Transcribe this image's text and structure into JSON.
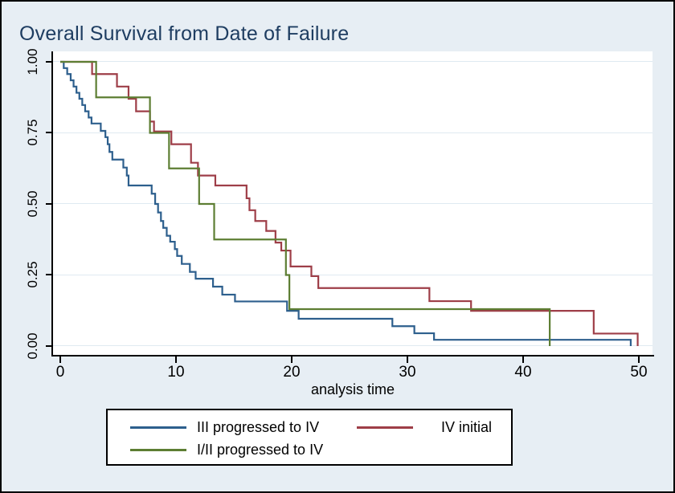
{
  "header": {
    "title": "Overall Survival from Date of Failure"
  },
  "chart_data": {
    "type": "line",
    "subtype": "kaplan-meier-step",
    "title": "Overall Survival from Date of Failure",
    "xlabel": "analysis time",
    "ylabel": "",
    "xlim": [
      0,
      50
    ],
    "ylim": [
      0.0,
      1.0
    ],
    "grid": true,
    "legend_position": "bottom",
    "x_tick_labels": [
      "0",
      "10",
      "20",
      "30",
      "40",
      "50"
    ],
    "x_tick_values": [
      0,
      10,
      20,
      30,
      40,
      50
    ],
    "y_tick_labels": [
      "1.00",
      "0.75",
      "0.50",
      "0.25",
      "0.00"
    ],
    "y_tick_values": [
      1.0,
      0.75,
      0.5,
      0.25,
      0.0
    ],
    "series": [
      {
        "key": "iii-progressed-to-iv",
        "name": "III progressed to IV",
        "color": "#2d5f8d",
        "start": [
          0,
          1.0
        ],
        "steps": [
          [
            0.3,
            0.978
          ],
          [
            0.6,
            0.957
          ],
          [
            0.9,
            0.935
          ],
          [
            1.15,
            0.913
          ],
          [
            1.4,
            0.891
          ],
          [
            1.65,
            0.87
          ],
          [
            1.9,
            0.848
          ],
          [
            2.15,
            0.826
          ],
          [
            2.45,
            0.804
          ],
          [
            2.7,
            0.783
          ],
          [
            3.5,
            0.757
          ],
          [
            3.9,
            0.735
          ],
          [
            4.1,
            0.71
          ],
          [
            4.25,
            0.683
          ],
          [
            4.5,
            0.656
          ],
          [
            5.45,
            0.628
          ],
          [
            5.75,
            0.6
          ],
          [
            5.9,
            0.565
          ],
          [
            7.9,
            0.536
          ],
          [
            8.2,
            0.5
          ],
          [
            8.45,
            0.47
          ],
          [
            8.7,
            0.44
          ],
          [
            8.9,
            0.416
          ],
          [
            9.2,
            0.388
          ],
          [
            9.5,
            0.367
          ],
          [
            9.9,
            0.341
          ],
          [
            10.1,
            0.317
          ],
          [
            10.5,
            0.289
          ],
          [
            11.2,
            0.261
          ],
          [
            11.7,
            0.237
          ],
          [
            13.2,
            0.209
          ],
          [
            14.0,
            0.181
          ],
          [
            15.1,
            0.157
          ],
          [
            19.6,
            0.124
          ],
          [
            20.6,
            0.096
          ],
          [
            28.7,
            0.07
          ],
          [
            30.6,
            0.045
          ],
          [
            32.3,
            0.022
          ],
          [
            49.3,
            0.0
          ]
        ]
      },
      {
        "key": "iv-initial",
        "name": "IV initial",
        "color": "#9e3e48",
        "start": [
          0,
          1.0
        ],
        "steps": [
          [
            2.75,
            0.957
          ],
          [
            4.9,
            0.913
          ],
          [
            5.9,
            0.87
          ],
          [
            6.55,
            0.826
          ],
          [
            7.75,
            0.79
          ],
          [
            8.1,
            0.755
          ],
          [
            9.6,
            0.71
          ],
          [
            11.3,
            0.645
          ],
          [
            11.9,
            0.6
          ],
          [
            13.4,
            0.565
          ],
          [
            16.1,
            0.52
          ],
          [
            16.35,
            0.478
          ],
          [
            16.85,
            0.44
          ],
          [
            17.8,
            0.405
          ],
          [
            18.6,
            0.364
          ],
          [
            19.1,
            0.336
          ],
          [
            19.9,
            0.28
          ],
          [
            21.7,
            0.246
          ],
          [
            22.3,
            0.204
          ],
          [
            31.9,
            0.158
          ],
          [
            35.5,
            0.124
          ],
          [
            46.1,
            0.044
          ],
          [
            49.9,
            0.0
          ]
        ]
      },
      {
        "key": "i-ii-progressed-to-iv",
        "name": "I/II progressed to IV",
        "color": "#5d7e33",
        "start": [
          0,
          1.0
        ],
        "steps": [
          [
            3.1,
            0.875
          ],
          [
            7.75,
            0.75
          ],
          [
            9.4,
            0.625
          ],
          [
            12.0,
            0.5
          ],
          [
            13.3,
            0.375
          ],
          [
            19.5,
            0.25
          ],
          [
            19.8,
            0.13
          ],
          [
            42.3,
            0.0
          ]
        ]
      }
    ]
  },
  "colors": {
    "background": "#e7eef4",
    "plot_background": "#ffffff",
    "gridline": "#dfeaf1",
    "axis": "#000000",
    "title_text": "#1e3d61"
  }
}
